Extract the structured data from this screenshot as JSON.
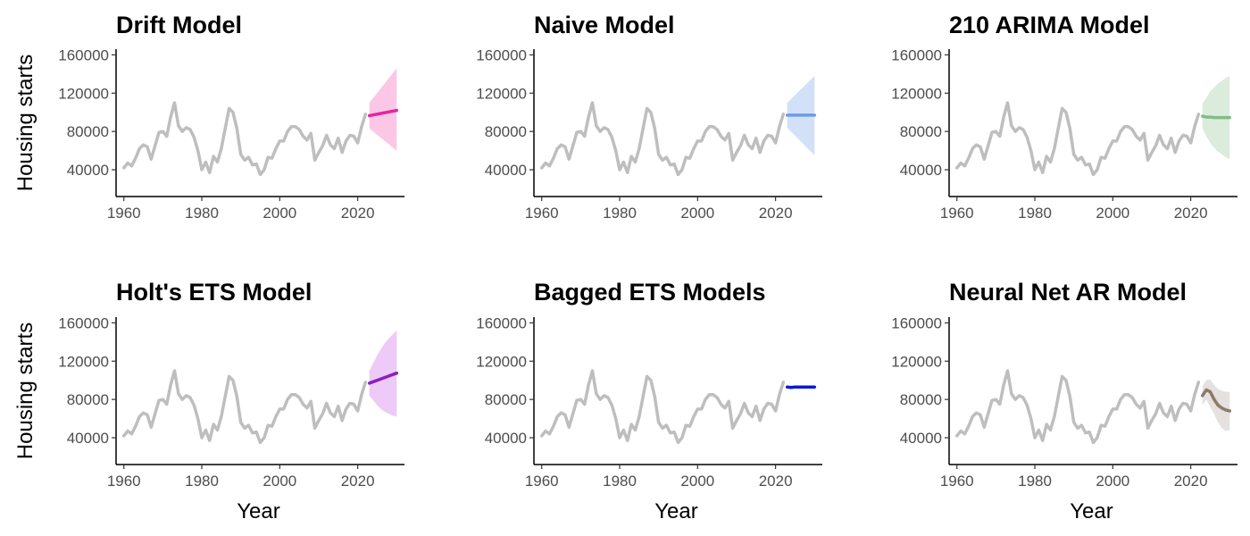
{
  "chart_data": {
    "type": "line",
    "shared": {
      "xlabel": "Year",
      "ylabel": "Housing starts",
      "x_ticks": [
        1960,
        1980,
        2000,
        2020
      ],
      "y_ticks": [
        40000,
        80000,
        120000,
        160000
      ],
      "xlim": [
        1958,
        2032
      ],
      "ylim": [
        12000,
        166000
      ],
      "history_color": "#bebebe",
      "history": {
        "name": "Observed housing starts",
        "x": [
          1960,
          1961,
          1962,
          1963,
          1964,
          1965,
          1966,
          1967,
          1968,
          1969,
          1970,
          1971,
          1972,
          1973,
          1974,
          1975,
          1976,
          1977,
          1978,
          1979,
          1980,
          1981,
          1982,
          1983,
          1984,
          1985,
          1986,
          1987,
          1988,
          1989,
          1990,
          1991,
          1992,
          1993,
          1994,
          1995,
          1996,
          1997,
          1998,
          1999,
          2000,
          2001,
          2002,
          2003,
          2004,
          2005,
          2006,
          2007,
          2008,
          2009,
          2010,
          2011,
          2012,
          2013,
          2014,
          2015,
          2016,
          2017,
          2018,
          2019,
          2020,
          2021,
          2022
        ],
        "y": [
          42000,
          47000,
          44000,
          52000,
          62000,
          66000,
          64000,
          51000,
          65000,
          79000,
          80000,
          75000,
          95000,
          110000,
          86000,
          80000,
          84000,
          82000,
          74000,
          60000,
          40000,
          48000,
          37000,
          54000,
          48000,
          62000,
          83000,
          104000,
          100000,
          83000,
          56000,
          50000,
          53000,
          45000,
          46000,
          35000,
          40000,
          53000,
          52000,
          62000,
          70000,
          70000,
          80000,
          85000,
          85000,
          82000,
          75000,
          71000,
          78000,
          50000,
          58000,
          65000,
          76000,
          66000,
          62000,
          73000,
          58000,
          70000,
          76000,
          75000,
          68000,
          85000,
          98000
        ]
      }
    },
    "panels": [
      {
        "title": "Drift Model",
        "color": "#e5249f",
        "band_color": "#fcc7e6",
        "forecast": {
          "x": [
            2023,
            2030
          ],
          "mean": [
            96500,
            102000
          ],
          "lower": [
            83000,
            60000
          ],
          "upper": [
            110000,
            146000
          ]
        }
      },
      {
        "title": "Naive Model",
        "color": "#6b9be6",
        "band_color": "#d2e0f8",
        "forecast": {
          "x": [
            2023,
            2030
          ],
          "mean": [
            97000,
            97000
          ],
          "lower": [
            84000,
            55000
          ],
          "upper": [
            110000,
            138000
          ]
        }
      },
      {
        "title": "210 ARIMA Model",
        "color": "#81bf84",
        "band_color": "#dcecdc",
        "forecast": {
          "x": [
            2023,
            2024,
            2025,
            2026,
            2027,
            2028,
            2029,
            2030
          ],
          "mean": [
            96000,
            95000,
            95000,
            94500,
            94500,
            94500,
            94500,
            94500
          ],
          "lower": [
            83000,
            75000,
            68000,
            63000,
            59000,
            56000,
            53000,
            51000
          ],
          "upper": [
            109000,
            115000,
            122000,
            126000,
            130000,
            133000,
            136000,
            138000
          ]
        }
      },
      {
        "title": "Holt's ETS Model",
        "color": "#8a1fbf",
        "band_color": "#edcaf7",
        "forecast": {
          "x": [
            2023,
            2024,
            2025,
            2026,
            2027,
            2028,
            2029,
            2030
          ],
          "mean": [
            97000,
            98500,
            100000,
            101500,
            103000,
            104500,
            106000,
            107500
          ],
          "lower": [
            84000,
            79000,
            74000,
            70000,
            67000,
            65000,
            63000,
            62000
          ],
          "upper": [
            110000,
            118000,
            126000,
            133000,
            139000,
            144000,
            148000,
            152000
          ]
        }
      },
      {
        "title": "Bagged ETS Models",
        "color": "#0a18d9",
        "band_color": "#c9ccf5",
        "forecast": {
          "x": [
            2023,
            2024,
            2025,
            2026,
            2027,
            2028,
            2029,
            2030
          ],
          "mean": [
            93000,
            92500,
            93000,
            93000,
            93000,
            93000,
            93000,
            93000
          ],
          "lower": [
            92000,
            91500,
            92000,
            92000,
            92000,
            92000,
            92000,
            92000
          ],
          "upper": [
            94000,
            93500,
            94000,
            94000,
            94000,
            94000,
            94000,
            94000
          ]
        }
      },
      {
        "title": "Neural Net AR Model",
        "color": "#8b7b6b",
        "band_color": "#e4e1df",
        "forecast": {
          "x": [
            2023,
            2024,
            2025,
            2026,
            2027,
            2028,
            2029,
            2030
          ],
          "mean": [
            84000,
            90000,
            88000,
            80000,
            74000,
            71000,
            69000,
            68000
          ],
          "lower": [
            74000,
            80000,
            72000,
            65000,
            56000,
            50000,
            47000,
            48000
          ],
          "upper": [
            94000,
            100000,
            101000,
            95000,
            91000,
            89000,
            88000,
            88000
          ]
        }
      }
    ]
  }
}
